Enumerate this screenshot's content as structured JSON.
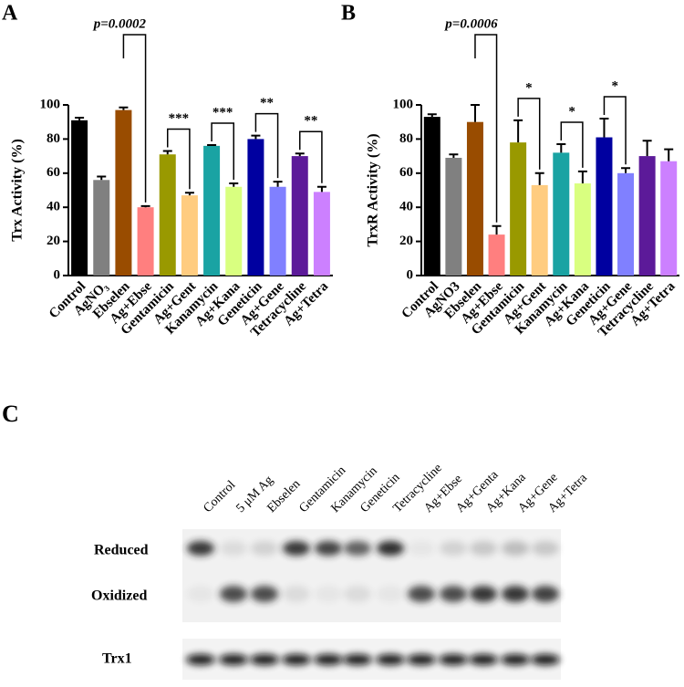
{
  "chart_data": [
    {
      "type": "bar",
      "panel_label": "A",
      "ylabel": "Trx Activity (%)",
      "categories": [
        "Control",
        "AgNO₃",
        "Ebselen",
        "Ag+Ebse",
        "Gentamicin",
        "Ag+Gent",
        "Kanamycin",
        "Ag+Kana",
        "Geneticin",
        "Ag+Gene",
        "Tetracycline",
        "Ag+Tetra"
      ],
      "values": [
        91,
        56,
        97,
        40,
        71,
        47,
        76,
        52,
        80,
        52,
        70,
        49
      ],
      "errors": [
        1.5,
        2,
        1.5,
        0.7,
        2,
        1.5,
        0.5,
        2,
        2,
        3,
        1.5,
        3
      ],
      "colors": [
        "#000000",
        "#808080",
        "#994c00",
        "#ff7f7f",
        "#999900",
        "#ffcc80",
        "#1aa3a3",
        "#d9ff80",
        "#0000a0",
        "#8080ff",
        "#5c1a99",
        "#cc80ff"
      ],
      "ylim": [
        0,
        100
      ],
      "yticks": [
        0,
        20,
        40,
        60,
        80,
        100
      ],
      "comparisons": [
        {
          "between": [
            2,
            3
          ],
          "label": "p=0.0002"
        },
        {
          "between": [
            4,
            5
          ],
          "label": "***"
        },
        {
          "between": [
            6,
            7
          ],
          "label": "***"
        },
        {
          "between": [
            8,
            9
          ],
          "label": "**"
        },
        {
          "between": [
            10,
            11
          ],
          "label": "**"
        }
      ]
    },
    {
      "type": "bar",
      "panel_label": "B",
      "ylabel": "TrxR Activity (%)",
      "categories": [
        "Control",
        "AgNO3",
        "Ebselen",
        "Ag+Ebse",
        "Gentamicin",
        "Ag+Gent",
        "Kanamycin",
        "Ag+Kana",
        "Geneticin",
        "Ag+Gene",
        "Tetracycline",
        "Ag+Tetra"
      ],
      "values": [
        93,
        69,
        90,
        24,
        78,
        53,
        72,
        54,
        81,
        60,
        70,
        67
      ],
      "errors": [
        1.5,
        2,
        10,
        5,
        13,
        7,
        5,
        7,
        11,
        3,
        9,
        7
      ],
      "colors": [
        "#000000",
        "#808080",
        "#994c00",
        "#ff7f7f",
        "#999900",
        "#ffcc80",
        "#1aa3a3",
        "#d9ff80",
        "#0000a0",
        "#8080ff",
        "#5c1a99",
        "#cc80ff"
      ],
      "ylim": [
        0,
        100
      ],
      "yticks": [
        0,
        20,
        40,
        60,
        80,
        100
      ],
      "comparisons": [
        {
          "between": [
            2,
            3
          ],
          "label": "p=0.0006"
        },
        {
          "between": [
            4,
            5
          ],
          "label": "*"
        },
        {
          "between": [
            6,
            7
          ],
          "label": "*"
        },
        {
          "between": [
            8,
            9
          ],
          "label": "*"
        }
      ]
    }
  ],
  "blot": {
    "panel_label": "C",
    "lanes": [
      "Control",
      "5 μM Ag",
      "Ebselen",
      "Gentamicin",
      "Kanamycin",
      "Geneticin",
      "Tetracycline",
      "Ag+Ebse",
      "Ag+Genta",
      "Ag+Kana",
      "Ag+Gene",
      "Ag+Tetra"
    ],
    "rows": [
      "Reduced",
      "Oxidized"
    ],
    "loading_control": "Trx1"
  }
}
